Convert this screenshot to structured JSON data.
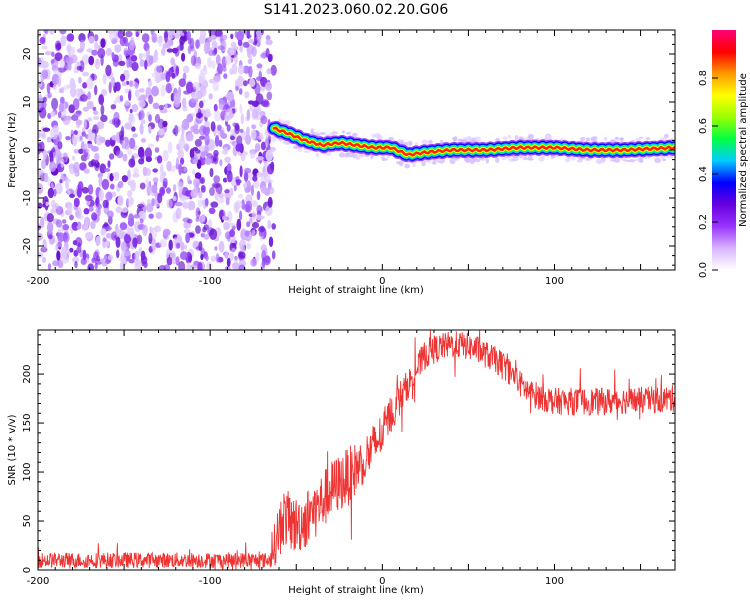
{
  "title": "S141.2023.060.02.20.G06",
  "chart_data": [
    {
      "type": "heatmap",
      "xlabel": "Height of straight line (km)",
      "ylabel": "Frequency (Hz)",
      "xlim": [
        -200,
        170
      ],
      "ylim": [
        -25,
        25
      ],
      "x_ticks": [
        -200,
        -100,
        0,
        100
      ],
      "y_ticks": [
        -20,
        -10,
        0,
        10,
        20
      ],
      "noise_region_x": [
        -200,
        -63
      ],
      "ridge": {
        "x": [
          -63,
          -55,
          -45,
          -35,
          -25,
          -15,
          -5,
          5,
          15,
          25,
          40,
          60,
          80,
          100,
          120,
          140,
          170
        ],
        "y": [
          4.5,
          3.5,
          2.0,
          1.0,
          1.5,
          1.0,
          0.5,
          0.5,
          -1.0,
          -0.5,
          0.0,
          0.0,
          0.5,
          0.5,
          0.0,
          0.0,
          0.5
        ]
      },
      "colorbar": {
        "label": "Normalized spectral amplitude",
        "range": [
          0.0,
          1.0
        ],
        "ticks": [
          0.0,
          0.2,
          0.4,
          0.6,
          0.8
        ],
        "tick_labels": [
          "0.0",
          "0.2",
          "0.4",
          "0.6",
          "0.8"
        ],
        "colors": [
          "#ffffff",
          "#d8b4ff",
          "#9933ff",
          "#6600dd",
          "#0000ff",
          "#00ccff",
          "#00ff44",
          "#99ff00",
          "#ffff00",
          "#ff9900",
          "#ff0000",
          "#ff0077"
        ]
      }
    },
    {
      "type": "line",
      "xlabel": "Height of straight line (km)",
      "ylabel": "SNR (10 * v/v)",
      "xlim": [
        -200,
        170
      ],
      "ylim": [
        0,
        245
      ],
      "x_ticks": [
        -200,
        -100,
        0,
        100
      ],
      "y_ticks": [
        0,
        50,
        100,
        150,
        200
      ],
      "color": "#ee3333",
      "series": [
        {
          "x": [
            -200,
            -150,
            -100,
            -65,
            -62,
            -58,
            -50,
            -42,
            -35,
            -28,
            -20,
            -12,
            -5,
            0,
            5,
            10,
            15,
            20,
            25,
            30,
            35,
            40,
            45,
            50,
            55,
            60,
            65,
            70,
            75,
            80,
            85,
            90,
            95,
            100,
            110,
            120,
            130,
            140,
            150,
            160,
            170
          ],
          "y": [
            10,
            10,
            10,
            10,
            30,
            55,
            45,
            55,
            70,
            85,
            95,
            110,
            125,
            140,
            160,
            175,
            190,
            205,
            220,
            225,
            228,
            230,
            230,
            228,
            225,
            220,
            215,
            210,
            200,
            190,
            182,
            178,
            175,
            172,
            172,
            172,
            172,
            173,
            173,
            174,
            175
          ],
          "noise": [
            8,
            8,
            8,
            8,
            25,
            30,
            30,
            30,
            30,
            30,
            30,
            25,
            25,
            22,
            20,
            18,
            15,
            15,
            15,
            15,
            14,
            14,
            14,
            14,
            14,
            14,
            14,
            14,
            14,
            14,
            14,
            14,
            14,
            14,
            14,
            14,
            14,
            14,
            14,
            14,
            14
          ]
        }
      ]
    }
  ]
}
